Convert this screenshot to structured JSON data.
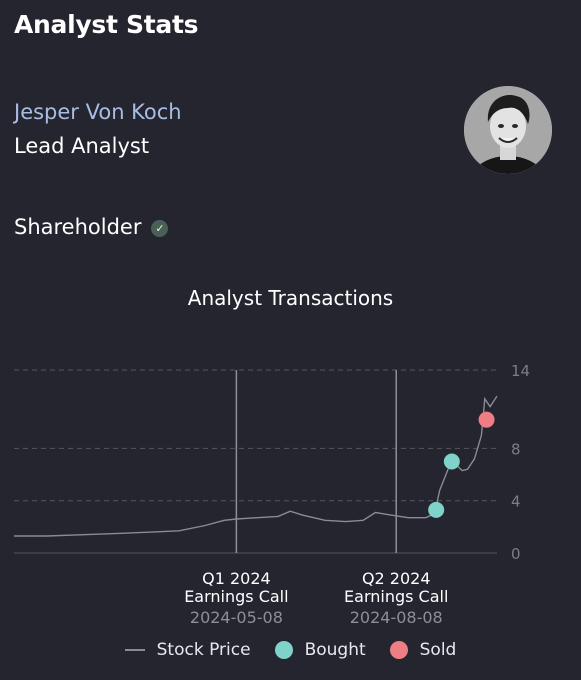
{
  "header": {
    "title": "Analyst Stats"
  },
  "analyst": {
    "name": "Jesper Von Koch",
    "role": "Lead Analyst",
    "shareholder_label": "Shareholder",
    "shareholder_icon": "check-circle-icon"
  },
  "colors": {
    "background": "#24252f",
    "name": "#a9bde4",
    "bought": "#7fd3cb",
    "sold": "#ee7d84",
    "price_line": "#8a8b93"
  },
  "legend": {
    "stock_price": "Stock Price",
    "bought": "Bought",
    "sold": "Sold"
  },
  "chart_data": {
    "type": "line",
    "title": "Analyst Transactions",
    "y_axis": {
      "min": 0,
      "max": 14,
      "ticks": [
        0,
        4,
        8,
        14
      ],
      "position": "right"
    },
    "x_range": [
      "2024-01-01",
      "2024-10-05"
    ],
    "grid": "dashed-horizontal",
    "legend_position": "bottom",
    "events": [
      {
        "line1": "Q1 2024",
        "line2": "Earnings Call",
        "date": "2024-05-08"
      },
      {
        "line1": "Q2 2024",
        "line2": "Earnings Call",
        "date": "2024-08-08"
      }
    ],
    "series": [
      {
        "name": "Stock Price",
        "points": [
          [
            "2024-01-01",
            1.3
          ],
          [
            "2024-01-20",
            1.3
          ],
          [
            "2024-02-10",
            1.4
          ],
          [
            "2024-03-01",
            1.5
          ],
          [
            "2024-03-20",
            1.6
          ],
          [
            "2024-04-05",
            1.7
          ],
          [
            "2024-04-20",
            2.1
          ],
          [
            "2024-05-01",
            2.5
          ],
          [
            "2024-05-08",
            2.6
          ],
          [
            "2024-05-20",
            2.7
          ],
          [
            "2024-06-01",
            2.8
          ],
          [
            "2024-06-08",
            3.2
          ],
          [
            "2024-06-15",
            2.9
          ],
          [
            "2024-06-28",
            2.5
          ],
          [
            "2024-07-10",
            2.4
          ],
          [
            "2024-07-20",
            2.5
          ],
          [
            "2024-07-27",
            3.1
          ],
          [
            "2024-08-05",
            2.9
          ],
          [
            "2024-08-15",
            2.7
          ],
          [
            "2024-08-25",
            2.7
          ],
          [
            "2024-08-30",
            3.0
          ],
          [
            "2024-09-02",
            4.8
          ],
          [
            "2024-09-05",
            5.8
          ],
          [
            "2024-09-08",
            6.8
          ],
          [
            "2024-09-11",
            6.8
          ],
          [
            "2024-09-15",
            6.3
          ],
          [
            "2024-09-18",
            6.4
          ],
          [
            "2024-09-22",
            7.2
          ],
          [
            "2024-09-26",
            9.0
          ],
          [
            "2024-09-28",
            11.8
          ],
          [
            "2024-10-01",
            11.2
          ],
          [
            "2024-10-05",
            12.0
          ]
        ]
      }
    ],
    "transactions": [
      {
        "type": "Bought",
        "date": "2024-08-31",
        "value": 3.3
      },
      {
        "type": "Bought",
        "date": "2024-09-09",
        "value": 7.0
      },
      {
        "type": "Sold",
        "date": "2024-09-29",
        "value": 10.2
      }
    ]
  }
}
